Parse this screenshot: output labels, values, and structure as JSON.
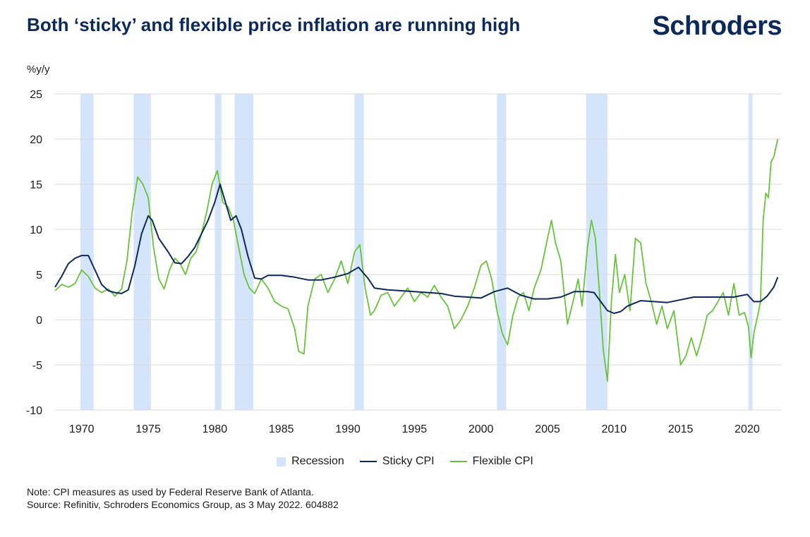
{
  "header": {
    "title": "Both ‘sticky’ and flexible price inflation are running high",
    "brand": "Schroders"
  },
  "footer": {
    "note": "Note: CPI measures as used by Federal Reserve Bank of Atlanta.",
    "source": "Source: Refinitiv, Schroders Economics Group, as  3 May 2022. 604882"
  },
  "colors": {
    "sticky": "#0b2a5b",
    "flexible": "#66c33a",
    "recession": "#d4e4fb",
    "grid": "#d9d9d9",
    "title": "#0b2a5b"
  },
  "chart_data": {
    "type": "line",
    "title": "Both ‘sticky’ and flexible price inflation are running high",
    "ylabel": "%y/y",
    "xlabel": "",
    "xlim": [
      1968,
      2022.6
    ],
    "ylim": [
      -10,
      25
    ],
    "yticks": [
      -10,
      -5,
      0,
      5,
      10,
      15,
      20,
      25
    ],
    "xticks": [
      1970,
      1975,
      1980,
      1985,
      1990,
      1995,
      2000,
      2005,
      2010,
      2015,
      2020
    ],
    "grid": true,
    "legend_position": "bottom",
    "legend": [
      "Recession",
      "Sticky CPI",
      "Flexible CPI"
    ],
    "recessions": [
      [
        1969.9,
        1970.9
      ],
      [
        1973.9,
        1975.2
      ],
      [
        1980.0,
        1980.5
      ],
      [
        1981.5,
        1982.9
      ],
      [
        1990.5,
        1991.2
      ],
      [
        2001.2,
        2001.9
      ],
      [
        2007.9,
        2009.5
      ],
      [
        2020.1,
        2020.4
      ]
    ],
    "series": [
      {
        "name": "Sticky CPI",
        "x": [
          1968,
          1968.5,
          1969,
          1969.5,
          1970,
          1970.5,
          1971,
          1971.5,
          1972,
          1972.5,
          1973,
          1973.5,
          1974,
          1974.5,
          1975,
          1975.3,
          1975.8,
          1976.5,
          1977,
          1977.5,
          1978,
          1978.5,
          1979,
          1979.5,
          1980,
          1980.4,
          1980.8,
          1981.2,
          1981.6,
          1982,
          1982.5,
          1983,
          1983.5,
          1984,
          1985,
          1986,
          1987,
          1988,
          1989,
          1990,
          1990.8,
          1991.5,
          1992,
          1993,
          1994,
          1995,
          1996,
          1997,
          1998,
          1999,
          2000,
          2001,
          2002,
          2003,
          2004,
          2005,
          2006,
          2007,
          2008,
          2008.5,
          2009,
          2009.5,
          2010,
          2010.5,
          2011,
          2012,
          2013,
          2014,
          2015,
          2016,
          2017,
          2018,
          2019,
          2020,
          2020.5,
          2021,
          2021.5,
          2022,
          2022.3
        ],
        "values": [
          3.6,
          4.8,
          6.2,
          6.8,
          7.1,
          7.1,
          5.5,
          3.9,
          3.2,
          3.0,
          2.9,
          3.3,
          6.0,
          9.5,
          11.5,
          11.0,
          9.0,
          7.5,
          6.3,
          6.2,
          7.0,
          8.0,
          9.5,
          11.0,
          13.0,
          15.0,
          13.0,
          11.0,
          11.5,
          10.0,
          7.0,
          4.6,
          4.5,
          4.9,
          4.9,
          4.7,
          4.4,
          4.4,
          4.7,
          5.1,
          5.8,
          4.6,
          3.5,
          3.3,
          3.2,
          3.1,
          3.0,
          2.9,
          2.6,
          2.5,
          2.4,
          3.1,
          3.5,
          2.7,
          2.3,
          2.3,
          2.5,
          3.1,
          3.1,
          3.0,
          2.0,
          1.0,
          0.7,
          0.9,
          1.5,
          2.1,
          2.0,
          1.9,
          2.2,
          2.5,
          2.5,
          2.5,
          2.5,
          2.8,
          2.0,
          2.0,
          2.6,
          3.6,
          4.7
        ]
      },
      {
        "name": "Flexible CPI",
        "x": [
          1968,
          1968.5,
          1969,
          1969.5,
          1970,
          1970.5,
          1971,
          1971.5,
          1972,
          1972.5,
          1973,
          1973.4,
          1973.8,
          1974.2,
          1974.6,
          1975,
          1975.4,
          1975.8,
          1976.2,
          1976.6,
          1977,
          1977.4,
          1977.8,
          1978.2,
          1978.6,
          1979,
          1979.4,
          1979.8,
          1980.2,
          1980.6,
          1981,
          1981.4,
          1981.8,
          1982.2,
          1982.6,
          1983,
          1983.5,
          1984,
          1984.5,
          1985,
          1985.5,
          1986,
          1986.3,
          1986.7,
          1987,
          1987.5,
          1988,
          1988.5,
          1989,
          1989.5,
          1990,
          1990.5,
          1990.9,
          1991.3,
          1991.7,
          1992,
          1992.5,
          1993,
          1993.5,
          1994,
          1994.5,
          1995,
          1995.5,
          1996,
          1996.5,
          1997,
          1997.5,
          1998,
          1998.5,
          1999,
          1999.5,
          2000,
          2000.4,
          2000.8,
          2001.2,
          2001.6,
          2002,
          2002.4,
          2002.8,
          2003.2,
          2003.6,
          2004,
          2004.5,
          2005,
          2005.3,
          2005.6,
          2006,
          2006.5,
          2007,
          2007.3,
          2007.6,
          2008,
          2008.3,
          2008.6,
          2008.9,
          2009.2,
          2009.5,
          2009.8,
          2010.1,
          2010.4,
          2010.8,
          2011.2,
          2011.6,
          2012,
          2012.4,
          2012.8,
          2013.2,
          2013.6,
          2014,
          2014.5,
          2015,
          2015.4,
          2015.8,
          2016.2,
          2016.6,
          2017,
          2017.4,
          2017.8,
          2018.2,
          2018.6,
          2019,
          2019.4,
          2019.8,
          2020.1,
          2020.3,
          2020.5,
          2020.8,
          2021,
          2021.2,
          2021.4,
          2021.6,
          2021.8,
          2022,
          2022.3
        ],
        "values": [
          3.2,
          3.9,
          3.6,
          4.0,
          5.5,
          4.8,
          3.5,
          3.0,
          3.4,
          2.6,
          3.4,
          6.5,
          12.0,
          15.8,
          15.0,
          13.5,
          8.0,
          4.5,
          3.4,
          5.5,
          6.8,
          6.2,
          5.0,
          6.8,
          7.5,
          9.5,
          12.0,
          15.0,
          16.5,
          13.0,
          12.5,
          11.0,
          8.0,
          5.0,
          3.5,
          2.9,
          4.5,
          3.5,
          2.0,
          1.5,
          1.2,
          -1.0,
          -3.5,
          -3.8,
          1.5,
          4.5,
          5.0,
          3.0,
          4.5,
          6.5,
          4.0,
          7.5,
          8.3,
          3.5,
          0.5,
          1.0,
          2.7,
          3.0,
          1.5,
          2.5,
          3.5,
          2.0,
          3.0,
          2.5,
          3.8,
          2.5,
          1.5,
          -1.0,
          0.0,
          1.5,
          3.5,
          6.0,
          6.5,
          4.5,
          1.0,
          -1.5,
          -2.8,
          0.5,
          2.5,
          3.0,
          1.0,
          3.5,
          5.5,
          9.0,
          11.0,
          8.5,
          6.5,
          -0.5,
          2.5,
          4.5,
          1.5,
          8.0,
          11.0,
          9.0,
          3.0,
          -3.5,
          -6.8,
          2.0,
          7.2,
          3.0,
          5.0,
          1.0,
          9.0,
          8.5,
          4.0,
          2.0,
          -0.5,
          1.5,
          -1.0,
          1.0,
          -5.0,
          -4.0,
          -2.0,
          -4.0,
          -2.0,
          0.5,
          1.0,
          2.0,
          3.0,
          0.5,
          4.0,
          0.5,
          0.8,
          -0.8,
          -4.2,
          -1.5,
          0.5,
          2.0,
          11.0,
          14.0,
          13.5,
          17.5,
          18.0,
          20.0
        ]
      }
    ]
  }
}
